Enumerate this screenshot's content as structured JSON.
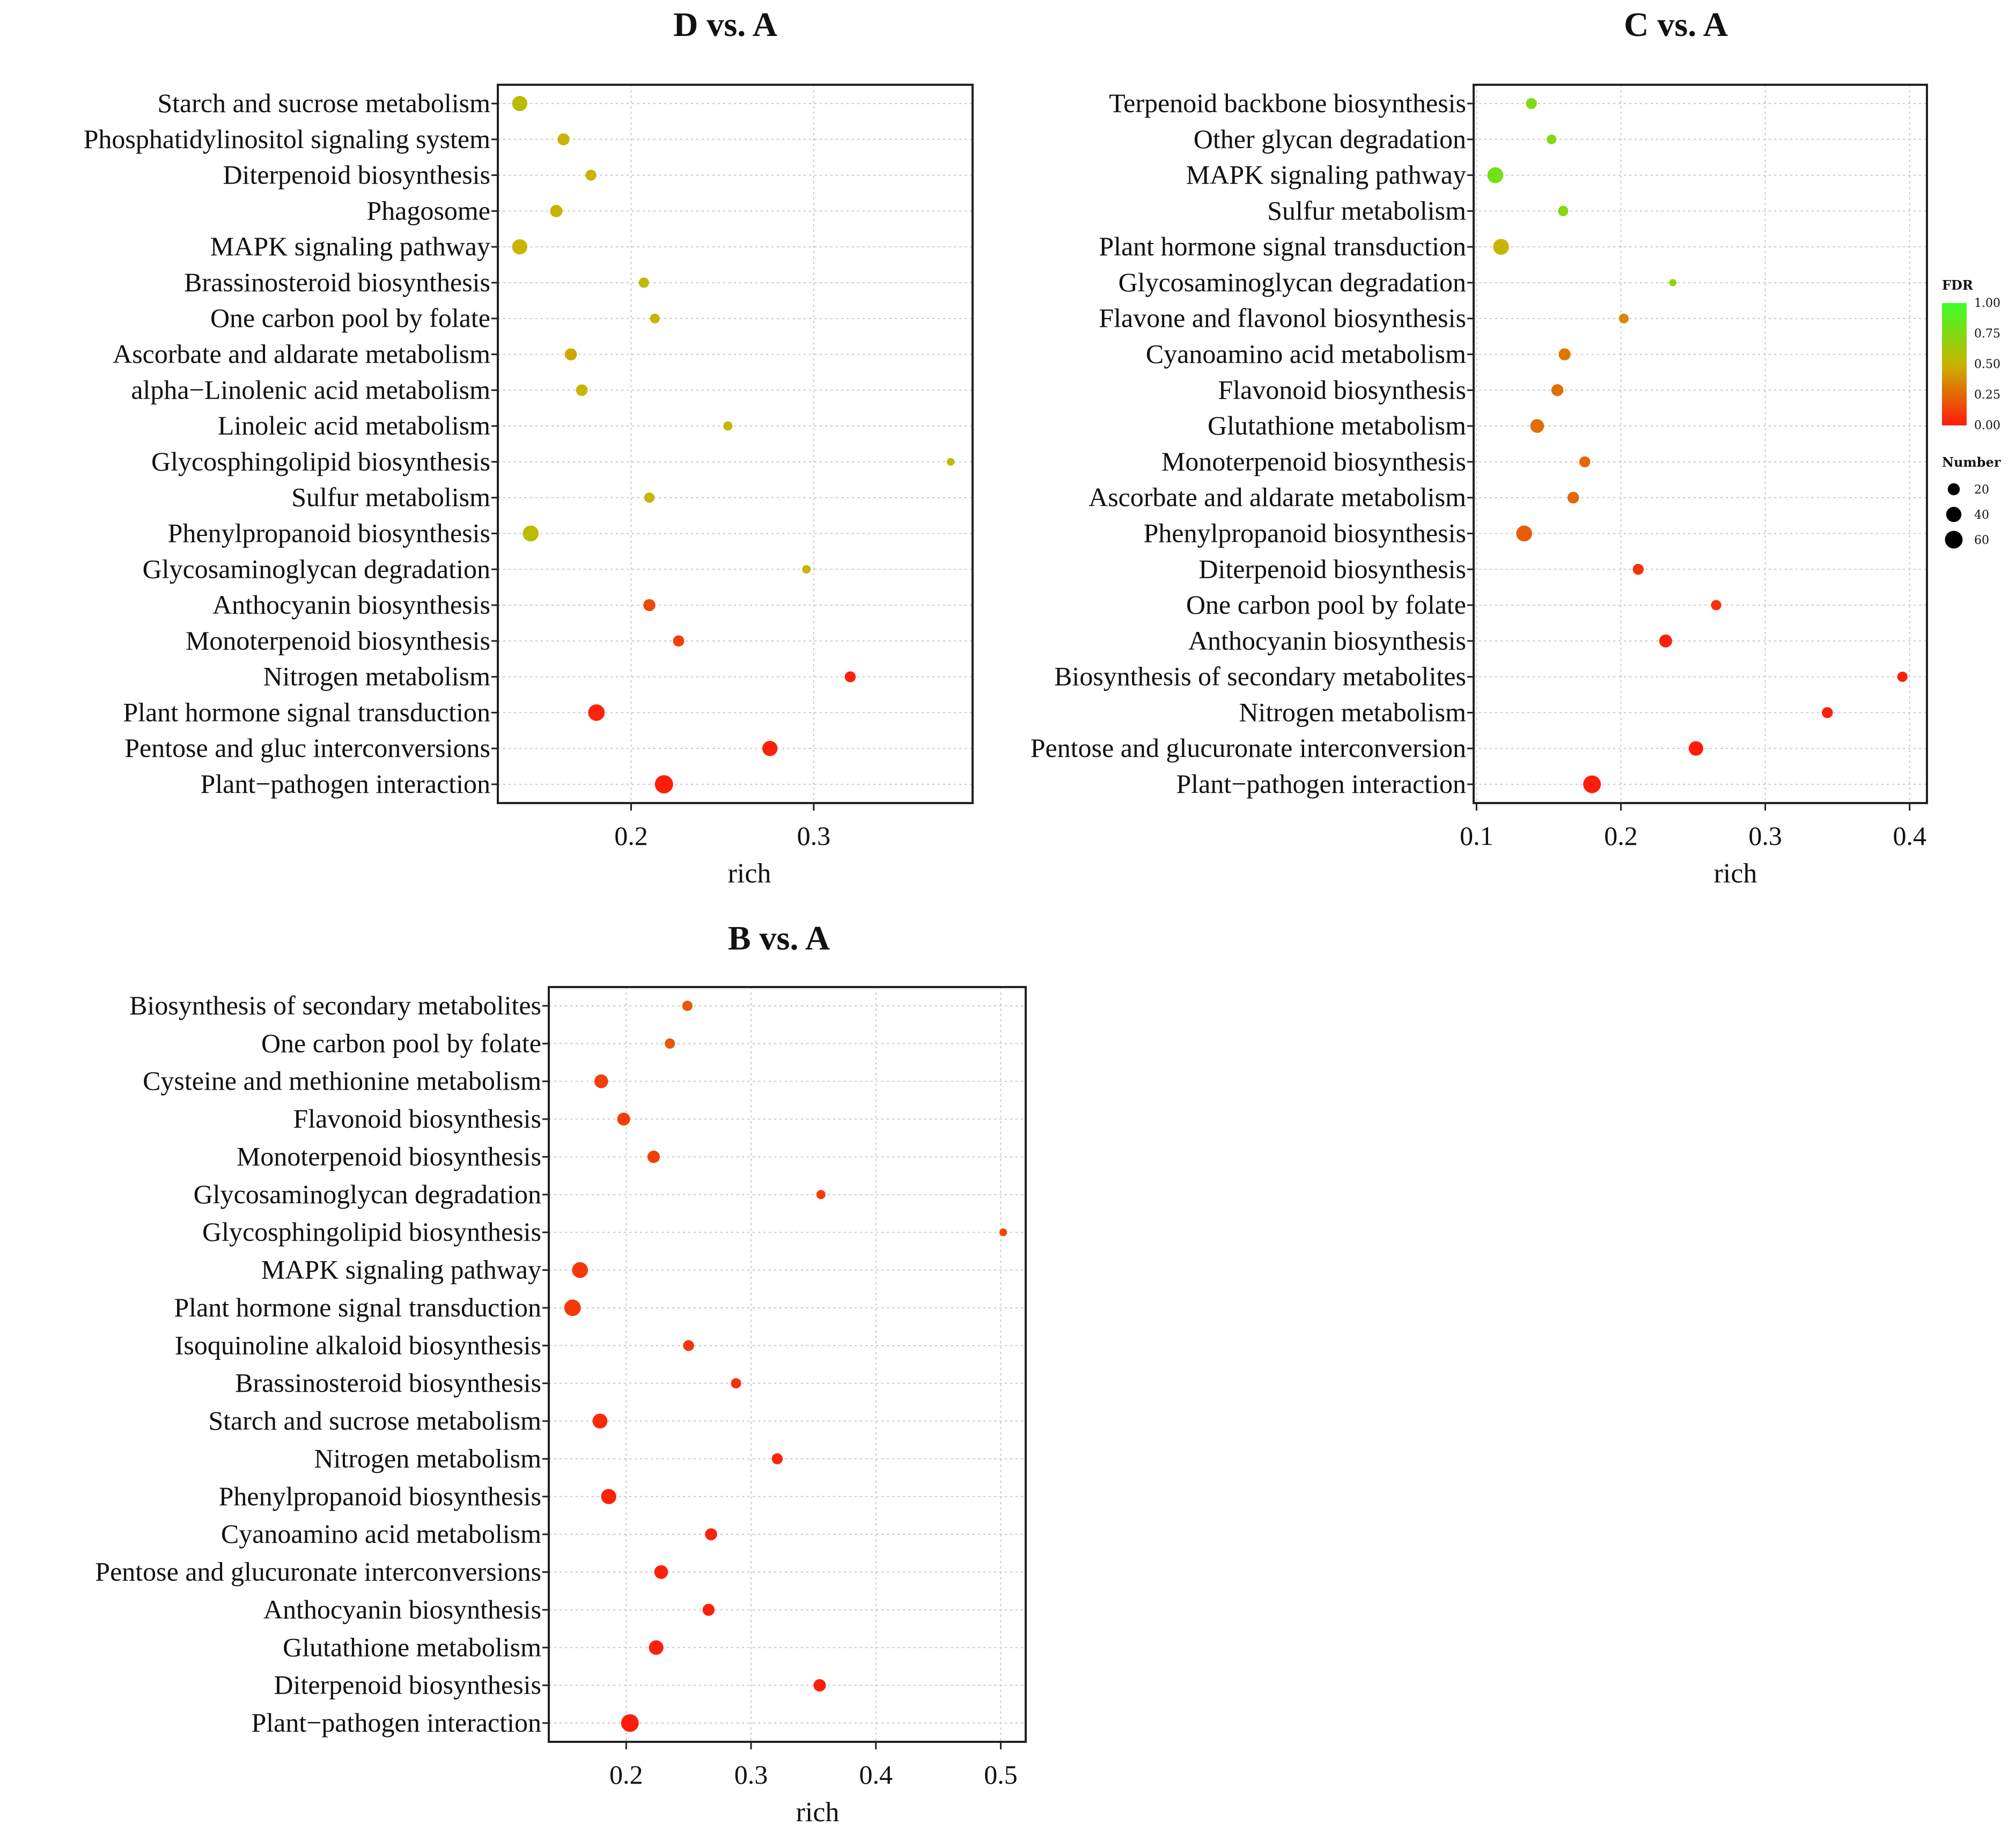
{
  "chart_data": [
    {
      "type": "scatter",
      "title": "D vs. A",
      "xlabel": "rich",
      "ylabel": "",
      "xlim": [
        0.127,
        0.387
      ],
      "xticks": [
        0.2,
        0.3
      ],
      "xtick_labels": [
        "0.2",
        "0.3"
      ],
      "grid": true,
      "categories": [
        {
          "label": "Starch and sucrose metabolism",
          "rich": 0.139,
          "fdr": 0.55,
          "number": 40
        },
        {
          "label": "Phosphatidylinositol signaling system",
          "rich": 0.163,
          "fdr": 0.5,
          "number": 20
        },
        {
          "label": "Diterpenoid biosynthesis",
          "rich": 0.178,
          "fdr": 0.5,
          "number": 15
        },
        {
          "label": "Phagosome",
          "rich": 0.159,
          "fdr": 0.5,
          "number": 22
        },
        {
          "label": "MAPK signaling pathway",
          "rich": 0.139,
          "fdr": 0.5,
          "number": 40
        },
        {
          "label": "Brassinosteroid biosynthesis",
          "rich": 0.207,
          "fdr": 0.52,
          "number": 12
        },
        {
          "label": "One carbon pool by folate",
          "rich": 0.213,
          "fdr": 0.52,
          "number": 10
        },
        {
          "label": "Ascorbate and aldarate metabolism",
          "rich": 0.167,
          "fdr": 0.45,
          "number": 20
        },
        {
          "label": "alpha−Linolenic acid metabolism",
          "rich": 0.173,
          "fdr": 0.5,
          "number": 18
        },
        {
          "label": "Linoleic acid metabolism",
          "rich": 0.253,
          "fdr": 0.52,
          "number": 8
        },
        {
          "label": "Glycosphingolipid biosynthesis",
          "rich": 0.375,
          "fdr": 0.52,
          "number": 4
        },
        {
          "label": "Sulfur metabolism",
          "rich": 0.21,
          "fdr": 0.5,
          "number": 12
        },
        {
          "label": "Phenylpropanoid biosynthesis",
          "rich": 0.145,
          "fdr": 0.55,
          "number": 45
        },
        {
          "label": "Glycosaminoglycan degradation",
          "rich": 0.296,
          "fdr": 0.5,
          "number": 6
        },
        {
          "label": "Anthocyanin biosynthesis",
          "rich": 0.21,
          "fdr": 0.15,
          "number": 20
        },
        {
          "label": "Monoterpenoid biosynthesis",
          "rich": 0.226,
          "fdr": 0.12,
          "number": 16
        },
        {
          "label": "Nitrogen metabolism",
          "rich": 0.32,
          "fdr": 0.02,
          "number": 15
        },
        {
          "label": "Plant hormone signal transduction",
          "rich": 0.181,
          "fdr": 0.03,
          "number": 50
        },
        {
          "label": "Pentose and gluc interconversions",
          "rich": 0.276,
          "fdr": 0.02,
          "number": 40
        },
        {
          "label": "Plant−pathogen interaction",
          "rich": 0.218,
          "fdr": 0.01,
          "number": 65
        }
      ]
    },
    {
      "type": "scatter",
      "title": "C vs. A",
      "xlabel": "rich",
      "ylabel": "",
      "xlim": [
        0.098,
        0.412
      ],
      "xticks": [
        0.1,
        0.2,
        0.3,
        0.4
      ],
      "xtick_labels": [
        "0.1",
        "0.2",
        "0.3",
        "0.4"
      ],
      "grid": true,
      "categories": [
        {
          "label": "Terpenoid backbone biosynthesis",
          "rich": 0.138,
          "fdr": 0.75,
          "number": 15
        },
        {
          "label": "Other glycan degradation",
          "rich": 0.152,
          "fdr": 0.75,
          "number": 10
        },
        {
          "label": "MAPK signaling pathway",
          "rich": 0.113,
          "fdr": 0.8,
          "number": 45
        },
        {
          "label": "Sulfur metabolism",
          "rich": 0.16,
          "fdr": 0.72,
          "number": 12
        },
        {
          "label": "Plant hormone signal transduction",
          "rich": 0.117,
          "fdr": 0.5,
          "number": 45
        },
        {
          "label": "Glycosaminoglycan degradation",
          "rich": 0.236,
          "fdr": 0.7,
          "number": 3
        },
        {
          "label": "Flavone and flavonol biosynthesis",
          "rich": 0.202,
          "fdr": 0.35,
          "number": 10
        },
        {
          "label": "Cyanoamino acid metabolism",
          "rich": 0.161,
          "fdr": 0.3,
          "number": 20
        },
        {
          "label": "Flavonoid biosynthesis",
          "rich": 0.156,
          "fdr": 0.28,
          "number": 20
        },
        {
          "label": "Glutathione metabolism",
          "rich": 0.142,
          "fdr": 0.28,
          "number": 30
        },
        {
          "label": "Monoterpenoid biosynthesis",
          "rich": 0.175,
          "fdr": 0.25,
          "number": 15
        },
        {
          "label": "Ascorbate and aldarate metabolism",
          "rich": 0.167,
          "fdr": 0.25,
          "number": 18
        },
        {
          "label": "Phenylpropanoid biosynthesis",
          "rich": 0.133,
          "fdr": 0.22,
          "number": 45
        },
        {
          "label": "Diterpenoid biosynthesis",
          "rich": 0.212,
          "fdr": 0.08,
          "number": 15
        },
        {
          "label": "One carbon pool by folate",
          "rich": 0.266,
          "fdr": 0.08,
          "number": 12
        },
        {
          "label": "Anthocyanin biosynthesis",
          "rich": 0.231,
          "fdr": 0.02,
          "number": 25
        },
        {
          "label": "Biosynthesis of secondary metabolites",
          "rich": 0.395,
          "fdr": 0.02,
          "number": 12
        },
        {
          "label": "Nitrogen metabolism",
          "rich": 0.343,
          "fdr": 0.02,
          "number": 15
        },
        {
          "label": "Pentose and glucuronate interconversion",
          "rich": 0.252,
          "fdr": 0.01,
          "number": 35
        },
        {
          "label": "Plant−pathogen interaction",
          "rich": 0.18,
          "fdr": 0.01,
          "number": 60
        }
      ]
    },
    {
      "type": "scatter",
      "title": "B vs. A",
      "xlabel": "rich",
      "ylabel": "",
      "xlim": [
        0.138,
        0.52
      ],
      "xticks": [
        0.2,
        0.3,
        0.4,
        0.5
      ],
      "xtick_labels": [
        "0.2",
        "0.3",
        "0.4",
        "0.5"
      ],
      "grid": true,
      "categories": [
        {
          "label": "Biosynthesis of secondary metabolites",
          "rich": 0.249,
          "fdr": 0.2,
          "number": 12
        },
        {
          "label": "One carbon pool by folate",
          "rich": 0.235,
          "fdr": 0.2,
          "number": 12
        },
        {
          "label": "Cysteine and methionine metabolism",
          "rich": 0.18,
          "fdr": 0.12,
          "number": 30
        },
        {
          "label": "Flavonoid biosynthesis",
          "rich": 0.198,
          "fdr": 0.12,
          "number": 25
        },
        {
          "label": "Monoterpenoid biosynthesis",
          "rich": 0.222,
          "fdr": 0.12,
          "number": 22
        },
        {
          "label": "Glycosaminoglycan degradation",
          "rich": 0.356,
          "fdr": 0.12,
          "number": 8
        },
        {
          "label": "Glycosphingolipid biosynthesis",
          "rich": 0.502,
          "fdr": 0.15,
          "number": 4
        },
        {
          "label": "MAPK signaling pathway",
          "rich": 0.163,
          "fdr": 0.1,
          "number": 45
        },
        {
          "label": "Plant hormone signal transduction",
          "rich": 0.157,
          "fdr": 0.1,
          "number": 50
        },
        {
          "label": "Isoquinoline alkaloid biosynthesis",
          "rich": 0.25,
          "fdr": 0.1,
          "number": 15
        },
        {
          "label": "Brassinosteroid biosynthesis",
          "rich": 0.288,
          "fdr": 0.08,
          "number": 12
        },
        {
          "label": "Starch and sucrose metabolism",
          "rich": 0.179,
          "fdr": 0.06,
          "number": 38
        },
        {
          "label": "Nitrogen metabolism",
          "rich": 0.321,
          "fdr": 0.04,
          "number": 15
        },
        {
          "label": "Phenylpropanoid biosynthesis",
          "rich": 0.186,
          "fdr": 0.03,
          "number": 40
        },
        {
          "label": "Cyanoamino acid metabolism",
          "rich": 0.268,
          "fdr": 0.03,
          "number": 20
        },
        {
          "label": "Pentose and glucuronate interconversions",
          "rich": 0.228,
          "fdr": 0.02,
          "number": 30
        },
        {
          "label": "Anthocyanin biosynthesis",
          "rich": 0.266,
          "fdr": 0.02,
          "number": 20
        },
        {
          "label": "Glutathione metabolism",
          "rich": 0.224,
          "fdr": 0.02,
          "number": 35
        },
        {
          "label": "Diterpenoid biosynthesis",
          "rich": 0.355,
          "fdr": 0.01,
          "number": 22
        },
        {
          "label": "Plant−pathogen interaction",
          "rich": 0.203,
          "fdr": 0.01,
          "number": 60
        }
      ]
    }
  ],
  "legend": {
    "fdr_title": "FDR",
    "fdr_ticks": [
      "1.00",
      "0.75",
      "0.50",
      "0.25",
      "0.00"
    ],
    "number_title": "Number",
    "number_values": [
      20,
      40,
      60
    ],
    "number_labels": [
      "20",
      "40",
      "60"
    ]
  },
  "colors": {
    "low": "#ff1a0a",
    "mid": "#c8b400",
    "high": "#39ff28",
    "grid": "#c8c8c8",
    "frame": "#222222"
  }
}
